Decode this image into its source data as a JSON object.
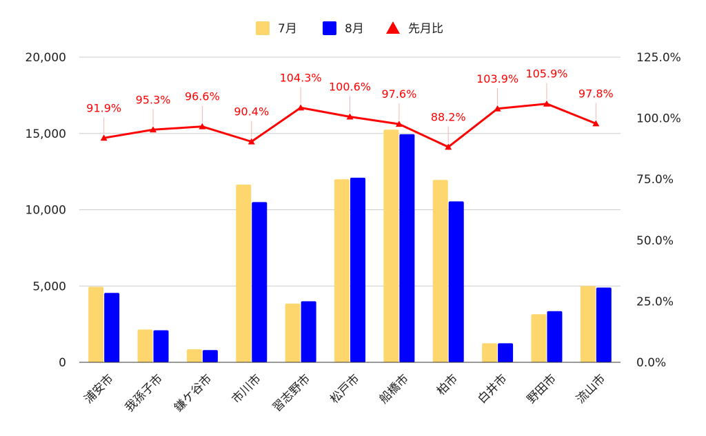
{
  "chart_data": {
    "type": "bar",
    "categories": [
      "浦安市",
      "我孫子市",
      "鎌ケ谷市",
      "市川市",
      "習志野市",
      "松戸市",
      "船橋市",
      "柏市",
      "白井市",
      "野田市",
      "流山市"
    ],
    "series": [
      {
        "name": "7月",
        "type": "bar",
        "axis": "left",
        "color": "#fdd66d",
        "values": [
          4950,
          2150,
          850,
          11650,
          3850,
          12000,
          15250,
          11950,
          1250,
          3150,
          5000
        ]
      },
      {
        "name": "8月",
        "type": "bar",
        "axis": "left",
        "color": "#0000ff",
        "values": [
          4550,
          2100,
          800,
          10500,
          4000,
          12100,
          14950,
          10550,
          1250,
          3350,
          4900
        ]
      },
      {
        "name": "先月比",
        "type": "line",
        "axis": "right",
        "color": "#ff0000",
        "values": [
          91.9,
          95.3,
          96.6,
          90.4,
          104.3,
          100.6,
          97.6,
          88.2,
          103.9,
          105.9,
          97.8
        ],
        "labels": [
          "91.9%",
          "95.3%",
          "96.6%",
          "90.4%",
          "104.3%",
          "100.6%",
          "97.6%",
          "88.2%",
          "103.9%",
          "105.9%",
          "97.8%"
        ]
      }
    ],
    "y_left": {
      "min": 0,
      "max": 20000,
      "ticks": [
        0,
        5000,
        10000,
        15000,
        20000
      ],
      "tick_labels": [
        "0",
        "5,000",
        "10,000",
        "15,000",
        "20,000"
      ]
    },
    "y_right": {
      "min": 0,
      "max": 125,
      "ticks": [
        0,
        25,
        50,
        75,
        100,
        125
      ],
      "tick_labels": [
        "0.0%",
        "25.0%",
        "50.0%",
        "75.0%",
        "100.0%",
        "125.0%"
      ]
    },
    "legend_position": "top",
    "grid": true,
    "gridline_color": "#cccccc",
    "label_color": "#ff0000"
  }
}
